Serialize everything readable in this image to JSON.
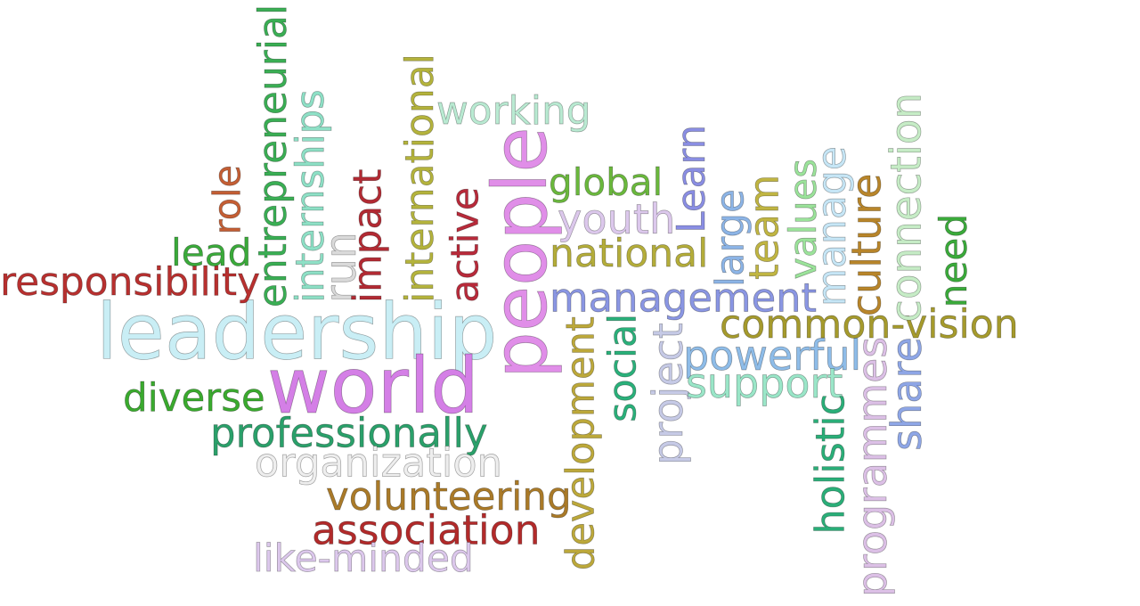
{
  "words": [
    {
      "text": "leadership",
      "color": "#c9eef5"
    },
    {
      "text": "people",
      "color": "#e08ee8"
    },
    {
      "text": "world",
      "color": "#d47fe6"
    },
    {
      "text": "responsibility",
      "color": "#b8302f"
    },
    {
      "text": "entrepreneurial",
      "color": "#3aae54"
    },
    {
      "text": "internships",
      "color": "#8ee0c6"
    },
    {
      "text": "international",
      "color": "#b4b33c"
    },
    {
      "text": "management",
      "color": "#8a96e3"
    },
    {
      "text": "common-vision",
      "color": "#a59a2c"
    },
    {
      "text": "working",
      "color": "#b9ead2"
    },
    {
      "text": "global",
      "color": "#6ab83c"
    },
    {
      "text": "youth",
      "color": "#dcc8ec"
    },
    {
      "text": "national",
      "color": "#b4ad3a"
    },
    {
      "text": "Learn",
      "color": "#8a8ee3"
    },
    {
      "text": "large",
      "color": "#8cb4e6"
    },
    {
      "text": "team",
      "color": "#c0b542"
    },
    {
      "text": "values",
      "color": "#9be39a"
    },
    {
      "text": "manage",
      "color": "#c6e6f6"
    },
    {
      "text": "culture",
      "color": "#b8852a"
    },
    {
      "text": "connection",
      "color": "#c6ecc6"
    },
    {
      "text": "need",
      "color": "#3aaa3a"
    },
    {
      "text": "role",
      "color": "#c45e34"
    },
    {
      "text": "lead",
      "color": "#3aaa3a"
    },
    {
      "text": "run",
      "color": "#dadada"
    },
    {
      "text": "impact",
      "color": "#b22a33"
    },
    {
      "text": "active",
      "color": "#b82a3a"
    },
    {
      "text": "diverse",
      "color": "#3aaa2e"
    },
    {
      "text": "professionally",
      "color": "#2aa06a"
    },
    {
      "text": "organization",
      "color": "#eeeeee"
    },
    {
      "text": "volunteering",
      "color": "#aa7a28"
    },
    {
      "text": "association",
      "color": "#b22a2a"
    },
    {
      "text": "like-minded",
      "color": "#dcc8ec"
    },
    {
      "text": "development",
      "color": "#bca83a"
    },
    {
      "text": "social",
      "color": "#2ab07a"
    },
    {
      "text": "project",
      "color": "#c6cae6"
    },
    {
      "text": "powerful",
      "color": "#8ebce8"
    },
    {
      "text": "support",
      "color": "#9ae6c8"
    },
    {
      "text": "holistic",
      "color": "#2aae78"
    },
    {
      "text": "programmes",
      "color": "#dcc0e6"
    },
    {
      "text": "share",
      "color": "#8ea6e6"
    }
  ]
}
